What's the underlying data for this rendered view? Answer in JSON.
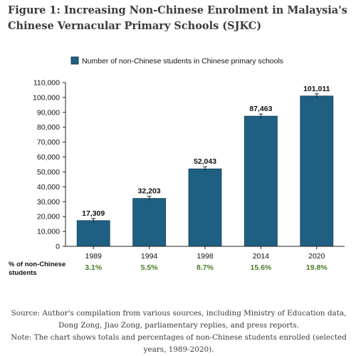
{
  "figure": {
    "title": "Figure 1: Increasing Non-Chinese Enrolment in Malaysia's Chinese Vernacular Primary Schools (SJKC)",
    "source": "Source: Author's compilation from various sources, including Ministry of Education data, Dong Zong, Jiao Zong, parliamentary replies, and press reports.",
    "note": "Note: The chart shows totals and percentages of non-Chinese students enrolled (selected years, 1989-2020)."
  },
  "chart_data": {
    "type": "bar",
    "categories": [
      "1989",
      "1994",
      "1998",
      "2014",
      "2020"
    ],
    "series": [
      {
        "name": "Number of non-Chinese students in Chinese primary schools",
        "values": [
          17309,
          32203,
          52043,
          87463,
          101011
        ],
        "value_labels": [
          "17,309",
          "32,203",
          "52,043",
          "87,463",
          "101,011"
        ]
      }
    ],
    "percent_row_label": [
      "% of non-Chinese",
      "students"
    ],
    "percentages": [
      "3.1%",
      "5.5%",
      "8.7%",
      "15.6%",
      "19.8%"
    ],
    "ylim": [
      0,
      110000
    ],
    "yticks": [
      0,
      10000,
      20000,
      30000,
      40000,
      50000,
      60000,
      70000,
      80000,
      90000,
      100000,
      110000
    ],
    "ytick_labels": [
      "0",
      "10,000",
      "20,000",
      "30,000",
      "40,000",
      "50,000",
      "60,000",
      "70,000",
      "80,000",
      "90,000",
      "100,000",
      "110,000"
    ],
    "legend_position": "top",
    "grid": false,
    "colors": {
      "bar": "#1f5f82",
      "bar_edge": "#173f57",
      "percent_text": "#4a7c2a",
      "axis": "#222222"
    }
  }
}
